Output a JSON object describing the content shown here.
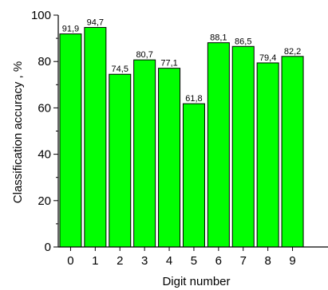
{
  "chart_data": {
    "type": "bar",
    "xlabel": "Digit number",
    "ylabel": "Classification accuracy , %",
    "categories": [
      "0",
      "1",
      "2",
      "3",
      "4",
      "5",
      "6",
      "7",
      "8",
      "9"
    ],
    "values": [
      91.9,
      94.7,
      74.5,
      80.7,
      77.1,
      61.8,
      88.1,
      86.5,
      79.4,
      82.2
    ],
    "data_labels": [
      "91,9",
      "94,7",
      "74,5",
      "80,7",
      "77,1",
      "61,8",
      "88,1",
      "86,5",
      "79,4",
      "82,2"
    ],
    "ylim": [
      0,
      100
    ],
    "yticks": [
      "0",
      "20",
      "40",
      "60",
      "80",
      "100"
    ],
    "bar_color": "#00ff00",
    "grid": false,
    "legend": "none"
  }
}
